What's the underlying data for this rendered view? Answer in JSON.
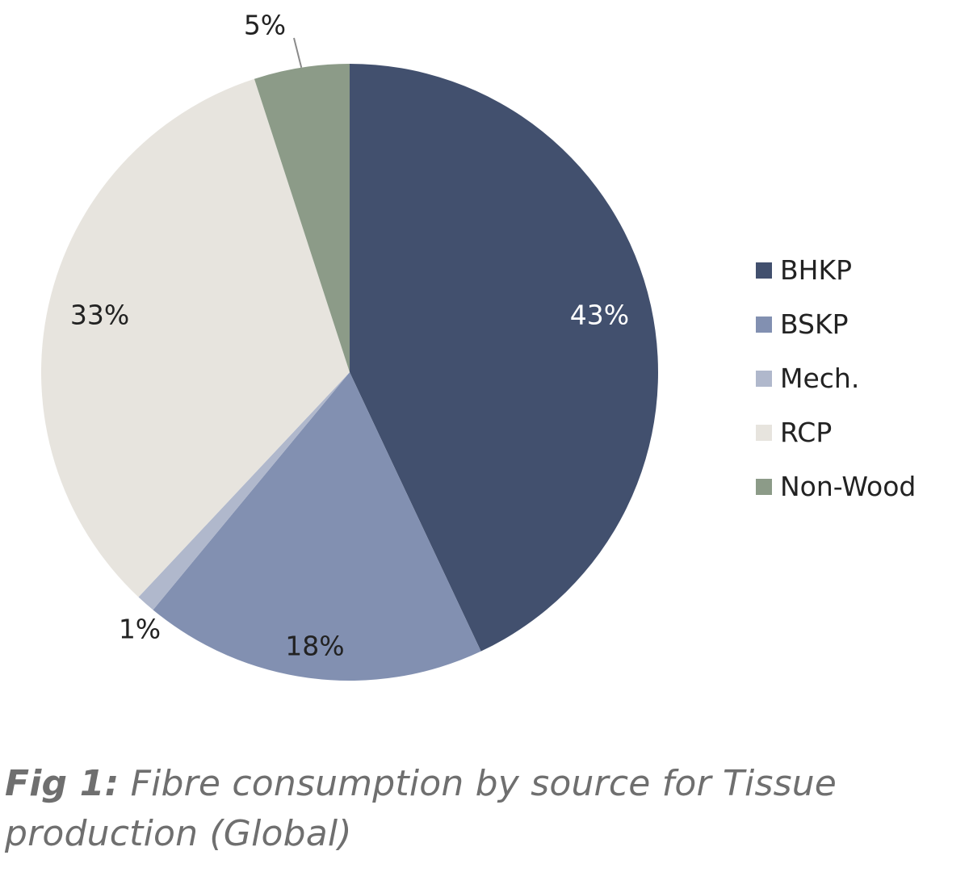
{
  "chart_data": {
    "type": "pie",
    "categories": [
      "BHKP",
      "BSKP",
      "Mech.",
      "RCP",
      "Non-Wood"
    ],
    "values": [
      43,
      18,
      1,
      33,
      5
    ],
    "value_labels": [
      "43%",
      "18%",
      "1%",
      "33%",
      "5%"
    ],
    "colors": [
      "#42506e",
      "#8290b1",
      "#b0b8cc",
      "#e7e4de",
      "#8c9b88"
    ],
    "label_colors": [
      "#ffffff",
      "#222222",
      "#222222",
      "#222222",
      "#222222"
    ],
    "legend_position": "right",
    "start_angle_deg": 0,
    "direction": "clockwise"
  },
  "caption": {
    "prefix": "Fig 1:",
    "text": "Fibre consumption by source for Tissue production (Global)"
  }
}
